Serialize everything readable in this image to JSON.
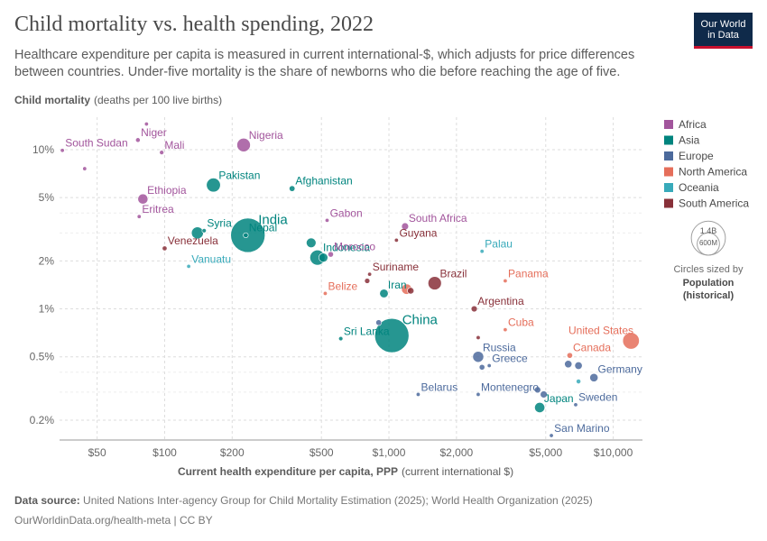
{
  "header": {
    "title": "Child mortality vs. health spending, 2022",
    "subtitle": "Healthcare expenditure per capita is measured in current international-$, which adjusts for price differences between countries. Under-five mortality is the share of newborns who die before reaching the age of five.",
    "logo_line1": "Our World",
    "logo_line2": "in Data"
  },
  "footer": {
    "source_label": "Data source:",
    "source_text": "United Nations Inter-agency Group for Child Mortality Estimation (2025); World Health Organization (2025)",
    "url_text": "OurWorldinData.org/health-meta | CC BY"
  },
  "legend": {
    "size_title": "Circles sized by",
    "size_var_line1": "Population",
    "size_var_line2": "(historical)",
    "size_big": "1.4B",
    "size_small": "600M"
  },
  "chart_data": {
    "type": "scatter",
    "title": "Child mortality vs. health spending, 2022",
    "xlabel_bold": "Current health expenditure per capita, PPP",
    "xlabel_unit": "(current international $)",
    "ylabel_bold": "Child mortality",
    "ylabel_unit": "(deaths per 100 live births)",
    "x_scale": "log",
    "y_scale": "log",
    "xlim": [
      34,
      13500
    ],
    "ylim": [
      0.15,
      16
    ],
    "x_ticks": [
      {
        "value": 50,
        "label": "$50"
      },
      {
        "value": 100,
        "label": "$100"
      },
      {
        "value": 200,
        "label": "$200"
      },
      {
        "value": 500,
        "label": "$500"
      },
      {
        "value": 1000,
        "label": "$1,000"
      },
      {
        "value": 2000,
        "label": "$2,000"
      },
      {
        "value": 5000,
        "label": "$5,000"
      },
      {
        "value": 10000,
        "label": "$10,000"
      }
    ],
    "y_ticks": [
      {
        "value": 10,
        "label": "10%"
      },
      {
        "value": 5,
        "label": "5%"
      },
      {
        "value": 2,
        "label": "2%"
      },
      {
        "value": 1,
        "label": "1%"
      },
      {
        "value": 0.5,
        "label": "0.5%"
      },
      {
        "value": 0.2,
        "label": "0.2%"
      }
    ],
    "regions": [
      {
        "name": "Africa",
        "color": "#a2559c"
      },
      {
        "name": "Asia",
        "color": "#00847e"
      },
      {
        "name": "Europe",
        "color": "#4c6a9c"
      },
      {
        "name": "North America",
        "color": "#e56e5a"
      },
      {
        "name": "Oceania",
        "color": "#38aaba"
      },
      {
        "name": "South America",
        "color": "#883039"
      }
    ],
    "points": [
      {
        "name": "South Sudan",
        "region": "Africa",
        "x": 35,
        "y": 9.9,
        "pop": 11,
        "label": "South Sudan"
      },
      {
        "name": "Niger",
        "region": "Africa",
        "x": 76,
        "y": 11.5,
        "pop": 26,
        "label": "Niger"
      },
      {
        "name": "Mali",
        "region": "Africa",
        "x": 97,
        "y": 9.6,
        "pop": 23,
        "label": "Mali"
      },
      {
        "name": "Nigeria",
        "region": "Africa",
        "x": 225,
        "y": 10.7,
        "pop": 219,
        "label": "Nigeria"
      },
      {
        "name": "Somalia",
        "region": "Africa",
        "x": 44,
        "y": 7.6,
        "pop": 17
      },
      {
        "name": "Chad",
        "region": "Africa",
        "x": 83,
        "y": 14.5,
        "pop": 18
      },
      {
        "name": "Ethiopia",
        "region": "Africa",
        "x": 80,
        "y": 4.9,
        "pop": 123,
        "label": "Ethiopia"
      },
      {
        "name": "Eritrea",
        "region": "Africa",
        "x": 77,
        "y": 3.8,
        "pop": 4,
        "label": "Eritrea"
      },
      {
        "name": "Gabon",
        "region": "Africa",
        "x": 530,
        "y": 3.6,
        "pop": 2.4,
        "label": "Gabon"
      },
      {
        "name": "South Africa",
        "region": "Africa",
        "x": 1180,
        "y": 3.3,
        "pop": 60,
        "label": "South Africa"
      },
      {
        "name": "Morocco",
        "region": "Africa",
        "x": 550,
        "y": 2.2,
        "pop": 37,
        "label": "Morocco"
      },
      {
        "name": "Pakistan",
        "region": "Asia",
        "x": 165,
        "y": 6.0,
        "pop": 235,
        "label": "Pakistan"
      },
      {
        "name": "Afghanistan",
        "region": "Asia",
        "x": 370,
        "y": 5.7,
        "pop": 41,
        "label": "Afghanistan"
      },
      {
        "name": "India",
        "region": "Asia",
        "x": 235,
        "y": 2.9,
        "pop": 1420,
        "label": "India"
      },
      {
        "name": "Nepal",
        "region": "Asia",
        "x": 230,
        "y": 2.9,
        "pop": 30,
        "label": "Nepal"
      },
      {
        "name": "Syria",
        "region": "Asia",
        "x": 150,
        "y": 3.1,
        "pop": 22,
        "label": "Syria"
      },
      {
        "name": "Indonesia",
        "region": "Asia",
        "x": 480,
        "y": 2.1,
        "pop": 276,
        "label": "Indonesia"
      },
      {
        "name": "Iran",
        "region": "Asia",
        "x": 950,
        "y": 1.25,
        "pop": 89,
        "label": "Iran"
      },
      {
        "name": "China",
        "region": "Asia",
        "x": 1030,
        "y": 0.68,
        "pop": 1410,
        "label": "China"
      },
      {
        "name": "Sri Lanka",
        "region": "Asia",
        "x": 610,
        "y": 0.65,
        "pop": 22,
        "label": "Sri Lanka"
      },
      {
        "name": "Japan",
        "region": "Asia",
        "x": 4700,
        "y": 0.24,
        "pop": 125,
        "label": "Japan"
      },
      {
        "name": "Bangladesh",
        "region": "Asia",
        "x": 140,
        "y": 3.0,
        "pop": 171
      },
      {
        "name": "Vietnam",
        "region": "Asia",
        "x": 510,
        "y": 2.1,
        "pop": 98
      },
      {
        "name": "Philippines",
        "region": "Asia",
        "x": 450,
        "y": 2.6,
        "pop": 115
      },
      {
        "name": "Russia",
        "region": "Europe",
        "x": 2500,
        "y": 0.5,
        "pop": 144,
        "label": "Russia"
      },
      {
        "name": "Greece",
        "region": "Europe",
        "x": 2800,
        "y": 0.44,
        "pop": 10,
        "label": "Greece"
      },
      {
        "name": "Germany",
        "region": "Europe",
        "x": 8200,
        "y": 0.37,
        "pop": 84,
        "label": "Germany"
      },
      {
        "name": "Belarus",
        "region": "Europe",
        "x": 1350,
        "y": 0.29,
        "pop": 9,
        "label": "Belarus"
      },
      {
        "name": "Montenegro",
        "region": "Europe",
        "x": 2500,
        "y": 0.29,
        "pop": 0.6,
        "label": "Montenegro"
      },
      {
        "name": "Sweden",
        "region": "Europe",
        "x": 6800,
        "y": 0.25,
        "pop": 10,
        "label": "Sweden"
      },
      {
        "name": "San Marino",
        "region": "Europe",
        "x": 5300,
        "y": 0.16,
        "pop": 0.03,
        "label": "San Marino"
      },
      {
        "name": "United Kingdom",
        "region": "Europe",
        "x": 6300,
        "y": 0.45,
        "pop": 67
      },
      {
        "name": "France",
        "region": "Europe",
        "x": 7000,
        "y": 0.44,
        "pop": 68
      },
      {
        "name": "Italy",
        "region": "Europe",
        "x": 4900,
        "y": 0.29,
        "pop": 59
      },
      {
        "name": "Ukraine",
        "region": "Europe",
        "x": 900,
        "y": 0.82,
        "pop": 39
      },
      {
        "name": "Poland",
        "region": "Europe",
        "x": 2600,
        "y": 0.43,
        "pop": 38
      },
      {
        "name": "Spain",
        "region": "Europe",
        "x": 4600,
        "y": 0.31,
        "pop": 48
      },
      {
        "name": "United States",
        "region": "North America",
        "x": 12000,
        "y": 0.63,
        "pop": 333,
        "label": "United States"
      },
      {
        "name": "Canada",
        "region": "North America",
        "x": 6400,
        "y": 0.51,
        "pop": 39,
        "label": "Canada"
      },
      {
        "name": "Mexico",
        "region": "North America",
        "x": 1200,
        "y": 1.33,
        "pop": 128
      },
      {
        "name": "Cuba",
        "region": "North America",
        "x": 3300,
        "y": 0.74,
        "pop": 11,
        "label": "Cuba"
      },
      {
        "name": "Panama",
        "region": "North America",
        "x": 3300,
        "y": 1.5,
        "pop": 4.4,
        "label": "Panama"
      },
      {
        "name": "Belize",
        "region": "North America",
        "x": 520,
        "y": 1.25,
        "pop": 0.4,
        "label": "Belize"
      },
      {
        "name": "Palau",
        "region": "Oceania",
        "x": 2600,
        "y": 2.3,
        "pop": 0.02,
        "label": "Palau"
      },
      {
        "name": "Vanuatu",
        "region": "Oceania",
        "x": 128,
        "y": 1.85,
        "pop": 0.3,
        "label": "Vanuatu"
      },
      {
        "name": "Australia",
        "region": "Oceania",
        "x": 7000,
        "y": 0.35,
        "pop": 26
      },
      {
        "name": "Venezuela",
        "region": "South America",
        "x": 100,
        "y": 2.4,
        "pop": 28,
        "label": "Venezuela"
      },
      {
        "name": "Guyana",
        "region": "South America",
        "x": 1080,
        "y": 2.7,
        "pop": 0.8,
        "label": "Guyana"
      },
      {
        "name": "Suriname",
        "region": "South America",
        "x": 820,
        "y": 1.65,
        "pop": 0.6,
        "label": "Suriname"
      },
      {
        "name": "Brazil",
        "region": "South America",
        "x": 1600,
        "y": 1.45,
        "pop": 215,
        "label": "Brazil"
      },
      {
        "name": "Argentina",
        "region": "South America",
        "x": 2400,
        "y": 1.0,
        "pop": 46,
        "label": "Argentina"
      },
      {
        "name": "Colombia",
        "region": "South America",
        "x": 1250,
        "y": 1.3,
        "pop": 52
      },
      {
        "name": "Peru",
        "region": "South America",
        "x": 800,
        "y": 1.5,
        "pop": 34
      },
      {
        "name": "Chile",
        "region": "South America",
        "x": 2500,
        "y": 0.66,
        "pop": 20
      }
    ]
  }
}
